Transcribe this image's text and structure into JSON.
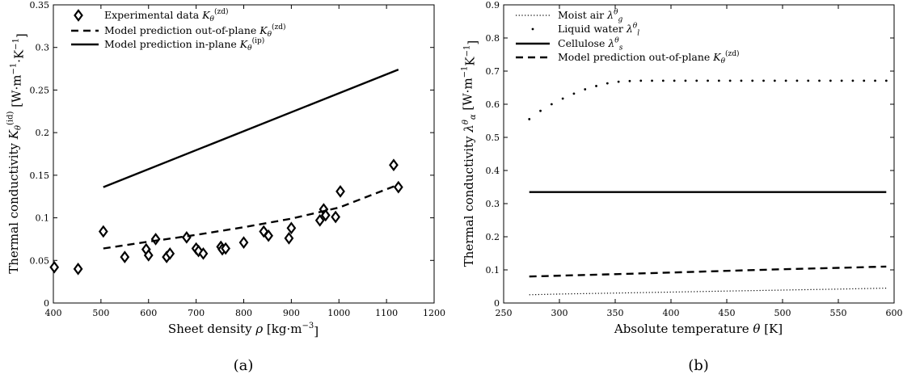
{
  "chart_data": [
    {
      "type": "scatter",
      "panel_label": "(a)",
      "xlabel": "Sheet density ρ [kg·m⁻³]",
      "ylabel": "Thermal conductivity K_θ^(id) [W·m⁻¹·K⁻¹]",
      "xlim": [
        400,
        1200
      ],
      "ylim": [
        0,
        0.35
      ],
      "xticks": [
        400,
        500,
        600,
        700,
        800,
        900,
        1000,
        1100,
        1200
      ],
      "yticks": [
        0,
        0.05,
        0.1,
        0.15,
        0.2,
        0.25,
        0.3,
        0.35
      ],
      "ytick_labels": [
        "0",
        "0.05",
        "0.1",
        "0.15",
        "0.2",
        "0.25",
        "0.3",
        "0.35"
      ],
      "grid": false,
      "legend_position": "top-left",
      "series": [
        {
          "name": "Experimental data K_θ^(zd)",
          "style": "markers-diamond",
          "points": [
            [
              402,
              0.042
            ],
            [
              452,
              0.04
            ],
            [
              505,
              0.084
            ],
            [
              550,
              0.054
            ],
            [
              595,
              0.063
            ],
            [
              600,
              0.056
            ],
            [
              615,
              0.075
            ],
            [
              638,
              0.054
            ],
            [
              645,
              0.058
            ],
            [
              680,
              0.077
            ],
            [
              700,
              0.064
            ],
            [
              705,
              0.061
            ],
            [
              715,
              0.058
            ],
            [
              752,
              0.066
            ],
            [
              755,
              0.063
            ],
            [
              762,
              0.064
            ],
            [
              800,
              0.071
            ],
            [
              842,
              0.084
            ],
            [
              852,
              0.079
            ],
            [
              895,
              0.076
            ],
            [
              900,
              0.088
            ],
            [
              960,
              0.097
            ],
            [
              968,
              0.11
            ],
            [
              972,
              0.103
            ],
            [
              993,
              0.101
            ],
            [
              1003,
              0.131
            ],
            [
              1115,
              0.162
            ],
            [
              1125,
              0.136
            ]
          ]
        },
        {
          "name": "Model prediction out-of-plane K_θ^(zd)",
          "style": "dashed",
          "points": [
            [
              505,
              0.064
            ],
            [
              600,
              0.072
            ],
            [
              700,
              0.08
            ],
            [
              800,
              0.089
            ],
            [
              900,
              0.099
            ],
            [
              1000,
              0.112
            ],
            [
              1125,
              0.139
            ]
          ]
        },
        {
          "name": "Model prediction in-plane K_θ^(ip)",
          "style": "solid",
          "points": [
            [
              505,
              0.136
            ],
            [
              1125,
              0.274
            ]
          ]
        }
      ]
    },
    {
      "type": "line",
      "panel_label": "(b)",
      "xlabel": "Absolute temperature θ [K]",
      "ylabel": "Thermal conductivity λ_α^θ [W·m⁻¹K⁻¹]",
      "xlim": [
        250,
        600
      ],
      "ylim": [
        0,
        0.9
      ],
      "xticks": [
        250,
        300,
        350,
        400,
        450,
        500,
        550,
        600
      ],
      "yticks": [
        0,
        0.1,
        0.2,
        0.3,
        0.4,
        0.5,
        0.6,
        0.7,
        0.8,
        0.9
      ],
      "ytick_labels": [
        "0",
        "0.1",
        "0.2",
        "0.3",
        "0.4",
        "0.5",
        "0.6",
        "0.7",
        "0.8",
        "0.9"
      ],
      "grid": false,
      "legend_position": "top-left",
      "series": [
        {
          "name": "Moist air λ_g^θ",
          "style": "dotted",
          "points": [
            [
              273,
              0.025
            ],
            [
              300,
              0.027
            ],
            [
              350,
              0.03
            ],
            [
              400,
              0.033
            ],
            [
              450,
              0.036
            ],
            [
              500,
              0.039
            ],
            [
              550,
              0.042
            ],
            [
              593,
              0.045
            ]
          ]
        },
        {
          "name": "Liquid water λ_l^θ",
          "style": "points",
          "points": [
            [
              273,
              0.555
            ],
            [
              283,
              0.58
            ],
            [
              293,
              0.6
            ],
            [
              303,
              0.617
            ],
            [
              313,
              0.632
            ],
            [
              323,
              0.645
            ],
            [
              333,
              0.655
            ],
            [
              343,
              0.663
            ],
            [
              353,
              0.668
            ],
            [
              363,
              0.67
            ],
            [
              373,
              0.671
            ],
            [
              383,
              0.671
            ],
            [
              393,
              0.671
            ],
            [
              403,
              0.671
            ],
            [
              413,
              0.671
            ],
            [
              423,
              0.671
            ],
            [
              433,
              0.671
            ],
            [
              443,
              0.671
            ],
            [
              453,
              0.671
            ],
            [
              463,
              0.671
            ],
            [
              473,
              0.671
            ],
            [
              483,
              0.671
            ],
            [
              493,
              0.671
            ],
            [
              503,
              0.671
            ],
            [
              513,
              0.671
            ],
            [
              523,
              0.671
            ],
            [
              533,
              0.671
            ],
            [
              543,
              0.671
            ],
            [
              553,
              0.671
            ],
            [
              563,
              0.671
            ],
            [
              573,
              0.671
            ],
            [
              583,
              0.671
            ],
            [
              593,
              0.671
            ]
          ]
        },
        {
          "name": "Cellulose λ_s^θ",
          "style": "solid",
          "points": [
            [
              273,
              0.335
            ],
            [
              593,
              0.335
            ]
          ]
        },
        {
          "name": "Model prediction out-of-plane K_θ^(zd)",
          "style": "dashed",
          "points": [
            [
              273,
              0.08
            ],
            [
              350,
              0.087
            ],
            [
              400,
              0.092
            ],
            [
              450,
              0.097
            ],
            [
              500,
              0.102
            ],
            [
              550,
              0.106
            ],
            [
              593,
              0.11
            ]
          ]
        }
      ]
    }
  ]
}
